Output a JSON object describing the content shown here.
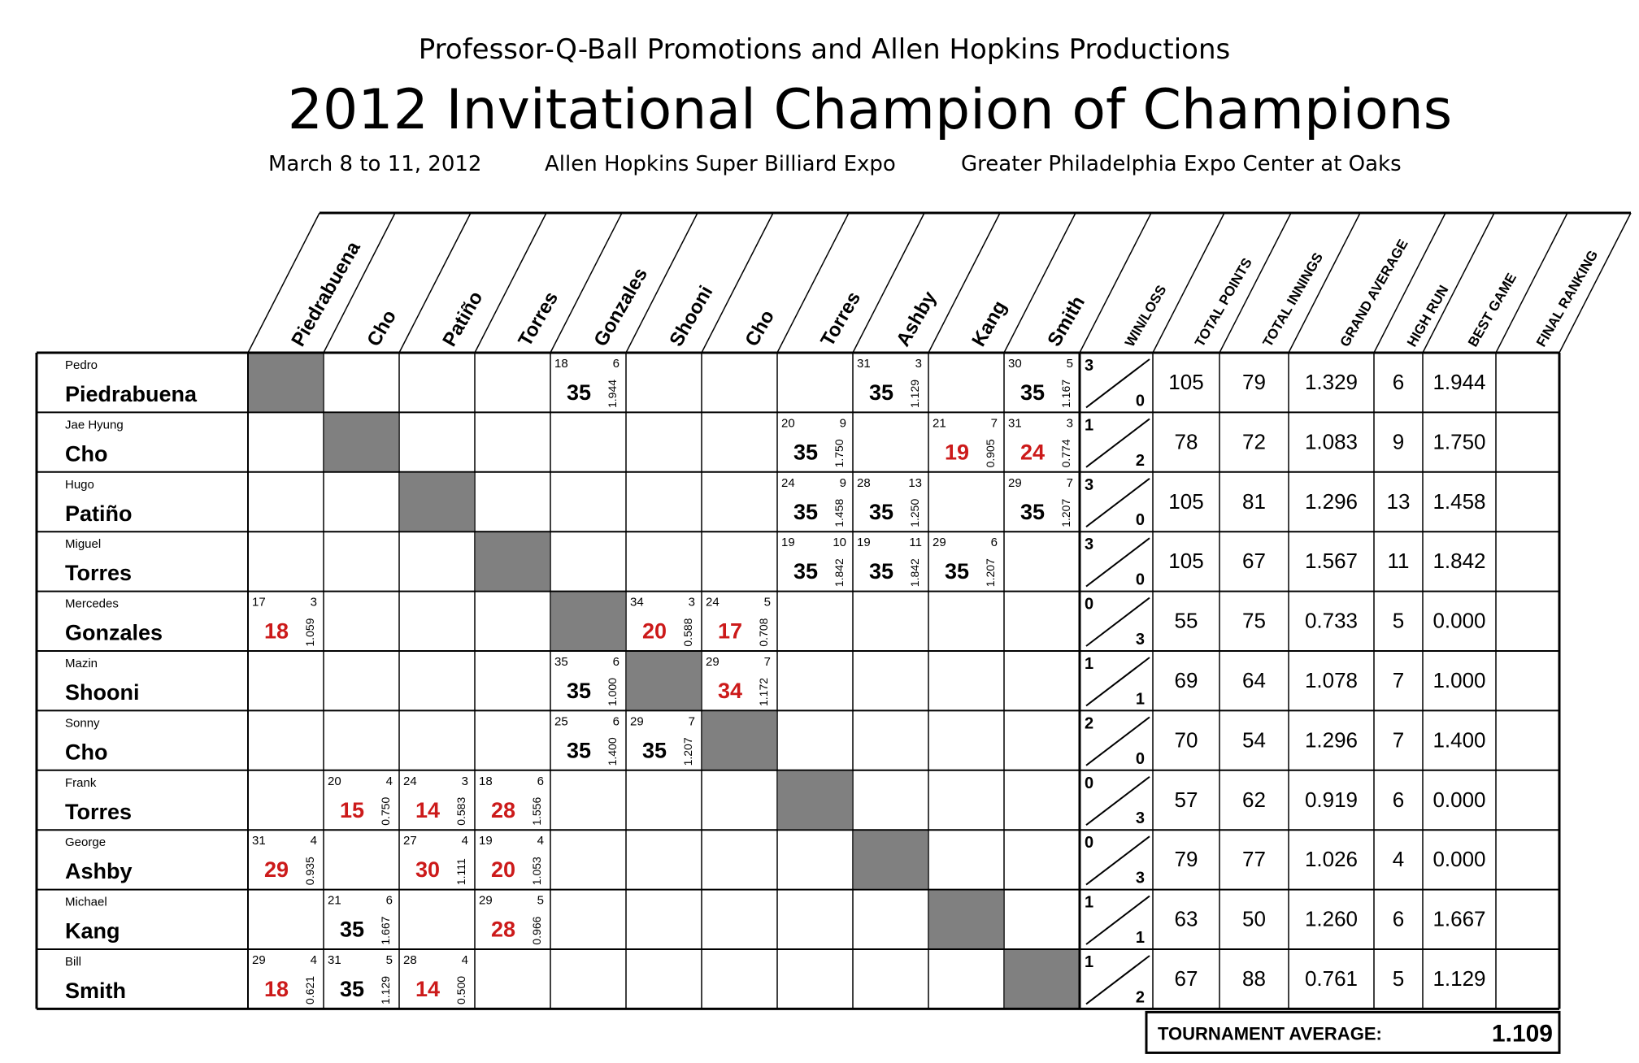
{
  "header": {
    "promoters": "Professor-Q-Ball Promotions and Allen Hopkins Productions",
    "title": "2012 Invitational Champion of Champions",
    "dates": "March 8 to 11, 2012",
    "event": "Allen Hopkins Super Billiard Expo",
    "venue": "Greater Philadelphia Expo Center at Oaks"
  },
  "columns": {
    "opponents": [
      "Piedrabuena",
      "Cho",
      "Patiño",
      "Torres",
      "Gonzales",
      "Shooni",
      "Cho",
      "Torres",
      "Ashby",
      "Kang",
      "Smith"
    ],
    "stats": [
      "WIN/LOSS",
      "TOTAL POINTS",
      "TOTAL INNINGS",
      "GRAND AVERAGE",
      "HIGH RUN",
      "BEST GAME",
      "FINAL RANKING"
    ]
  },
  "colors": {
    "win": "#000000",
    "loss": "#cc1a1a",
    "diagonal": "#808080"
  },
  "players": [
    {
      "first": "Pedro",
      "last": "Piedrabuena",
      "wins": "3",
      "losses": "0",
      "total_points": "105",
      "total_innings": "79",
      "grand_average": "1.329",
      "high_run": "6",
      "best_game": "1.944",
      "final_ranking": "",
      "games": [
        {
          "col": 4,
          "opp": "18",
          "inn": "6",
          "score": "35",
          "avg": "1.944",
          "win": true
        },
        {
          "col": 8,
          "opp": "31",
          "inn": "3",
          "score": "35",
          "avg": "1.129",
          "win": true
        },
        {
          "col": 10,
          "opp": "30",
          "inn": "5",
          "score": "35",
          "avg": "1.167",
          "win": true
        }
      ]
    },
    {
      "first": "Jae Hyung",
      "last": "Cho",
      "wins": "1",
      "losses": "2",
      "total_points": "78",
      "total_innings": "72",
      "grand_average": "1.083",
      "high_run": "9",
      "best_game": "1.750",
      "final_ranking": "",
      "games": [
        {
          "col": 7,
          "opp": "20",
          "inn": "9",
          "score": "35",
          "avg": "1.750",
          "win": true
        },
        {
          "col": 9,
          "opp": "21",
          "inn": "7",
          "score": "19",
          "avg": "0.905",
          "win": false
        },
        {
          "col": 10,
          "opp": "31",
          "inn": "3",
          "score": "24",
          "avg": "0.774",
          "win": false
        }
      ]
    },
    {
      "first": "Hugo",
      "last": "Patiño",
      "wins": "3",
      "losses": "0",
      "total_points": "105",
      "total_innings": "81",
      "grand_average": "1.296",
      "high_run": "13",
      "best_game": "1.458",
      "final_ranking": "",
      "games": [
        {
          "col": 7,
          "opp": "24",
          "inn": "9",
          "score": "35",
          "avg": "1.458",
          "win": true
        },
        {
          "col": 8,
          "opp": "28",
          "inn": "13",
          "score": "35",
          "avg": "1.250",
          "win": true
        },
        {
          "col": 10,
          "opp": "29",
          "inn": "7",
          "score": "35",
          "avg": "1.207",
          "win": true
        }
      ]
    },
    {
      "first": "Miguel",
      "last": "Torres",
      "wins": "3",
      "losses": "0",
      "total_points": "105",
      "total_innings": "67",
      "grand_average": "1.567",
      "high_run": "11",
      "best_game": "1.842",
      "final_ranking": "",
      "games": [
        {
          "col": 7,
          "opp": "19",
          "inn": "10",
          "score": "35",
          "avg": "1.842",
          "win": true
        },
        {
          "col": 8,
          "opp": "19",
          "inn": "11",
          "score": "35",
          "avg": "1.842",
          "win": true
        },
        {
          "col": 9,
          "opp": "29",
          "inn": "6",
          "score": "35",
          "avg": "1.207",
          "win": true
        }
      ]
    },
    {
      "first": "Mercedes",
      "last": "Gonzales",
      "wins": "0",
      "losses": "3",
      "total_points": "55",
      "total_innings": "75",
      "grand_average": "0.733",
      "high_run": "5",
      "best_game": "0.000",
      "final_ranking": "",
      "games": [
        {
          "col": 0,
          "opp": "17",
          "inn": "3",
          "score": "18",
          "avg": "1.059",
          "win": false
        },
        {
          "col": 5,
          "opp": "34",
          "inn": "3",
          "score": "20",
          "avg": "0.588",
          "win": false
        },
        {
          "col": 6,
          "opp": "24",
          "inn": "5",
          "score": "17",
          "avg": "0.708",
          "win": false
        }
      ]
    },
    {
      "first": "Mazin",
      "last": "Shooni",
      "wins": "1",
      "losses": "1",
      "total_points": "69",
      "total_innings": "64",
      "grand_average": "1.078",
      "high_run": "7",
      "best_game": "1.000",
      "final_ranking": "",
      "games": [
        {
          "col": 4,
          "opp": "35",
          "inn": "6",
          "score": "35",
          "avg": "1.000",
          "win": true
        },
        {
          "col": 6,
          "opp": "29",
          "inn": "7",
          "score": "34",
          "avg": "1.172",
          "win": false
        }
      ]
    },
    {
      "first": "Sonny",
      "last": "Cho",
      "wins": "2",
      "losses": "0",
      "total_points": "70",
      "total_innings": "54",
      "grand_average": "1.296",
      "high_run": "7",
      "best_game": "1.400",
      "final_ranking": "",
      "games": [
        {
          "col": 4,
          "opp": "25",
          "inn": "6",
          "score": "35",
          "avg": "1.400",
          "win": true
        },
        {
          "col": 5,
          "opp": "29",
          "inn": "7",
          "score": "35",
          "avg": "1.207",
          "win": true
        }
      ]
    },
    {
      "first": "Frank",
      "last": "Torres",
      "wins": "0",
      "losses": "3",
      "total_points": "57",
      "total_innings": "62",
      "grand_average": "0.919",
      "high_run": "6",
      "best_game": "0.000",
      "final_ranking": "",
      "games": [
        {
          "col": 1,
          "opp": "20",
          "inn": "4",
          "score": "15",
          "avg": "0.750",
          "win": false
        },
        {
          "col": 2,
          "opp": "24",
          "inn": "3",
          "score": "14",
          "avg": "0.583",
          "win": false
        },
        {
          "col": 3,
          "opp": "18",
          "inn": "6",
          "score": "28",
          "avg": "1.556",
          "win": false
        }
      ]
    },
    {
      "first": "George",
      "last": "Ashby",
      "wins": "0",
      "losses": "3",
      "total_points": "79",
      "total_innings": "77",
      "grand_average": "1.026",
      "high_run": "4",
      "best_game": "0.000",
      "final_ranking": "",
      "games": [
        {
          "col": 0,
          "opp": "31",
          "inn": "4",
          "score": "29",
          "avg": "0.935",
          "win": false
        },
        {
          "col": 2,
          "opp": "27",
          "inn": "4",
          "score": "30",
          "avg": "1.111",
          "win": false
        },
        {
          "col": 3,
          "opp": "19",
          "inn": "4",
          "score": "20",
          "avg": "1.053",
          "win": false
        }
      ]
    },
    {
      "first": "Michael",
      "last": "Kang",
      "wins": "1",
      "losses": "1",
      "total_points": "63",
      "total_innings": "50",
      "grand_average": "1.260",
      "high_run": "6",
      "best_game": "1.667",
      "final_ranking": "",
      "games": [
        {
          "col": 1,
          "opp": "21",
          "inn": "6",
          "score": "35",
          "avg": "1.667",
          "win": true
        },
        {
          "col": 3,
          "opp": "29",
          "inn": "5",
          "score": "28",
          "avg": "0.966",
          "win": false
        }
      ]
    },
    {
      "first": "Bill",
      "last": "Smith",
      "wins": "1",
      "losses": "2",
      "total_points": "67",
      "total_innings": "88",
      "grand_average": "0.761",
      "high_run": "5",
      "best_game": "1.129",
      "final_ranking": "",
      "games": [
        {
          "col": 0,
          "opp": "29",
          "inn": "4",
          "score": "18",
          "avg": "0.621",
          "win": false
        },
        {
          "col": 1,
          "opp": "31",
          "inn": "5",
          "score": "35",
          "avg": "1.129",
          "win": true
        },
        {
          "col": 2,
          "opp": "28",
          "inn": "4",
          "score": "14",
          "avg": "0.500",
          "win": false
        }
      ]
    }
  ],
  "footer": {
    "label": "TOURNAMENT AVERAGE:",
    "value": "1.109"
  }
}
